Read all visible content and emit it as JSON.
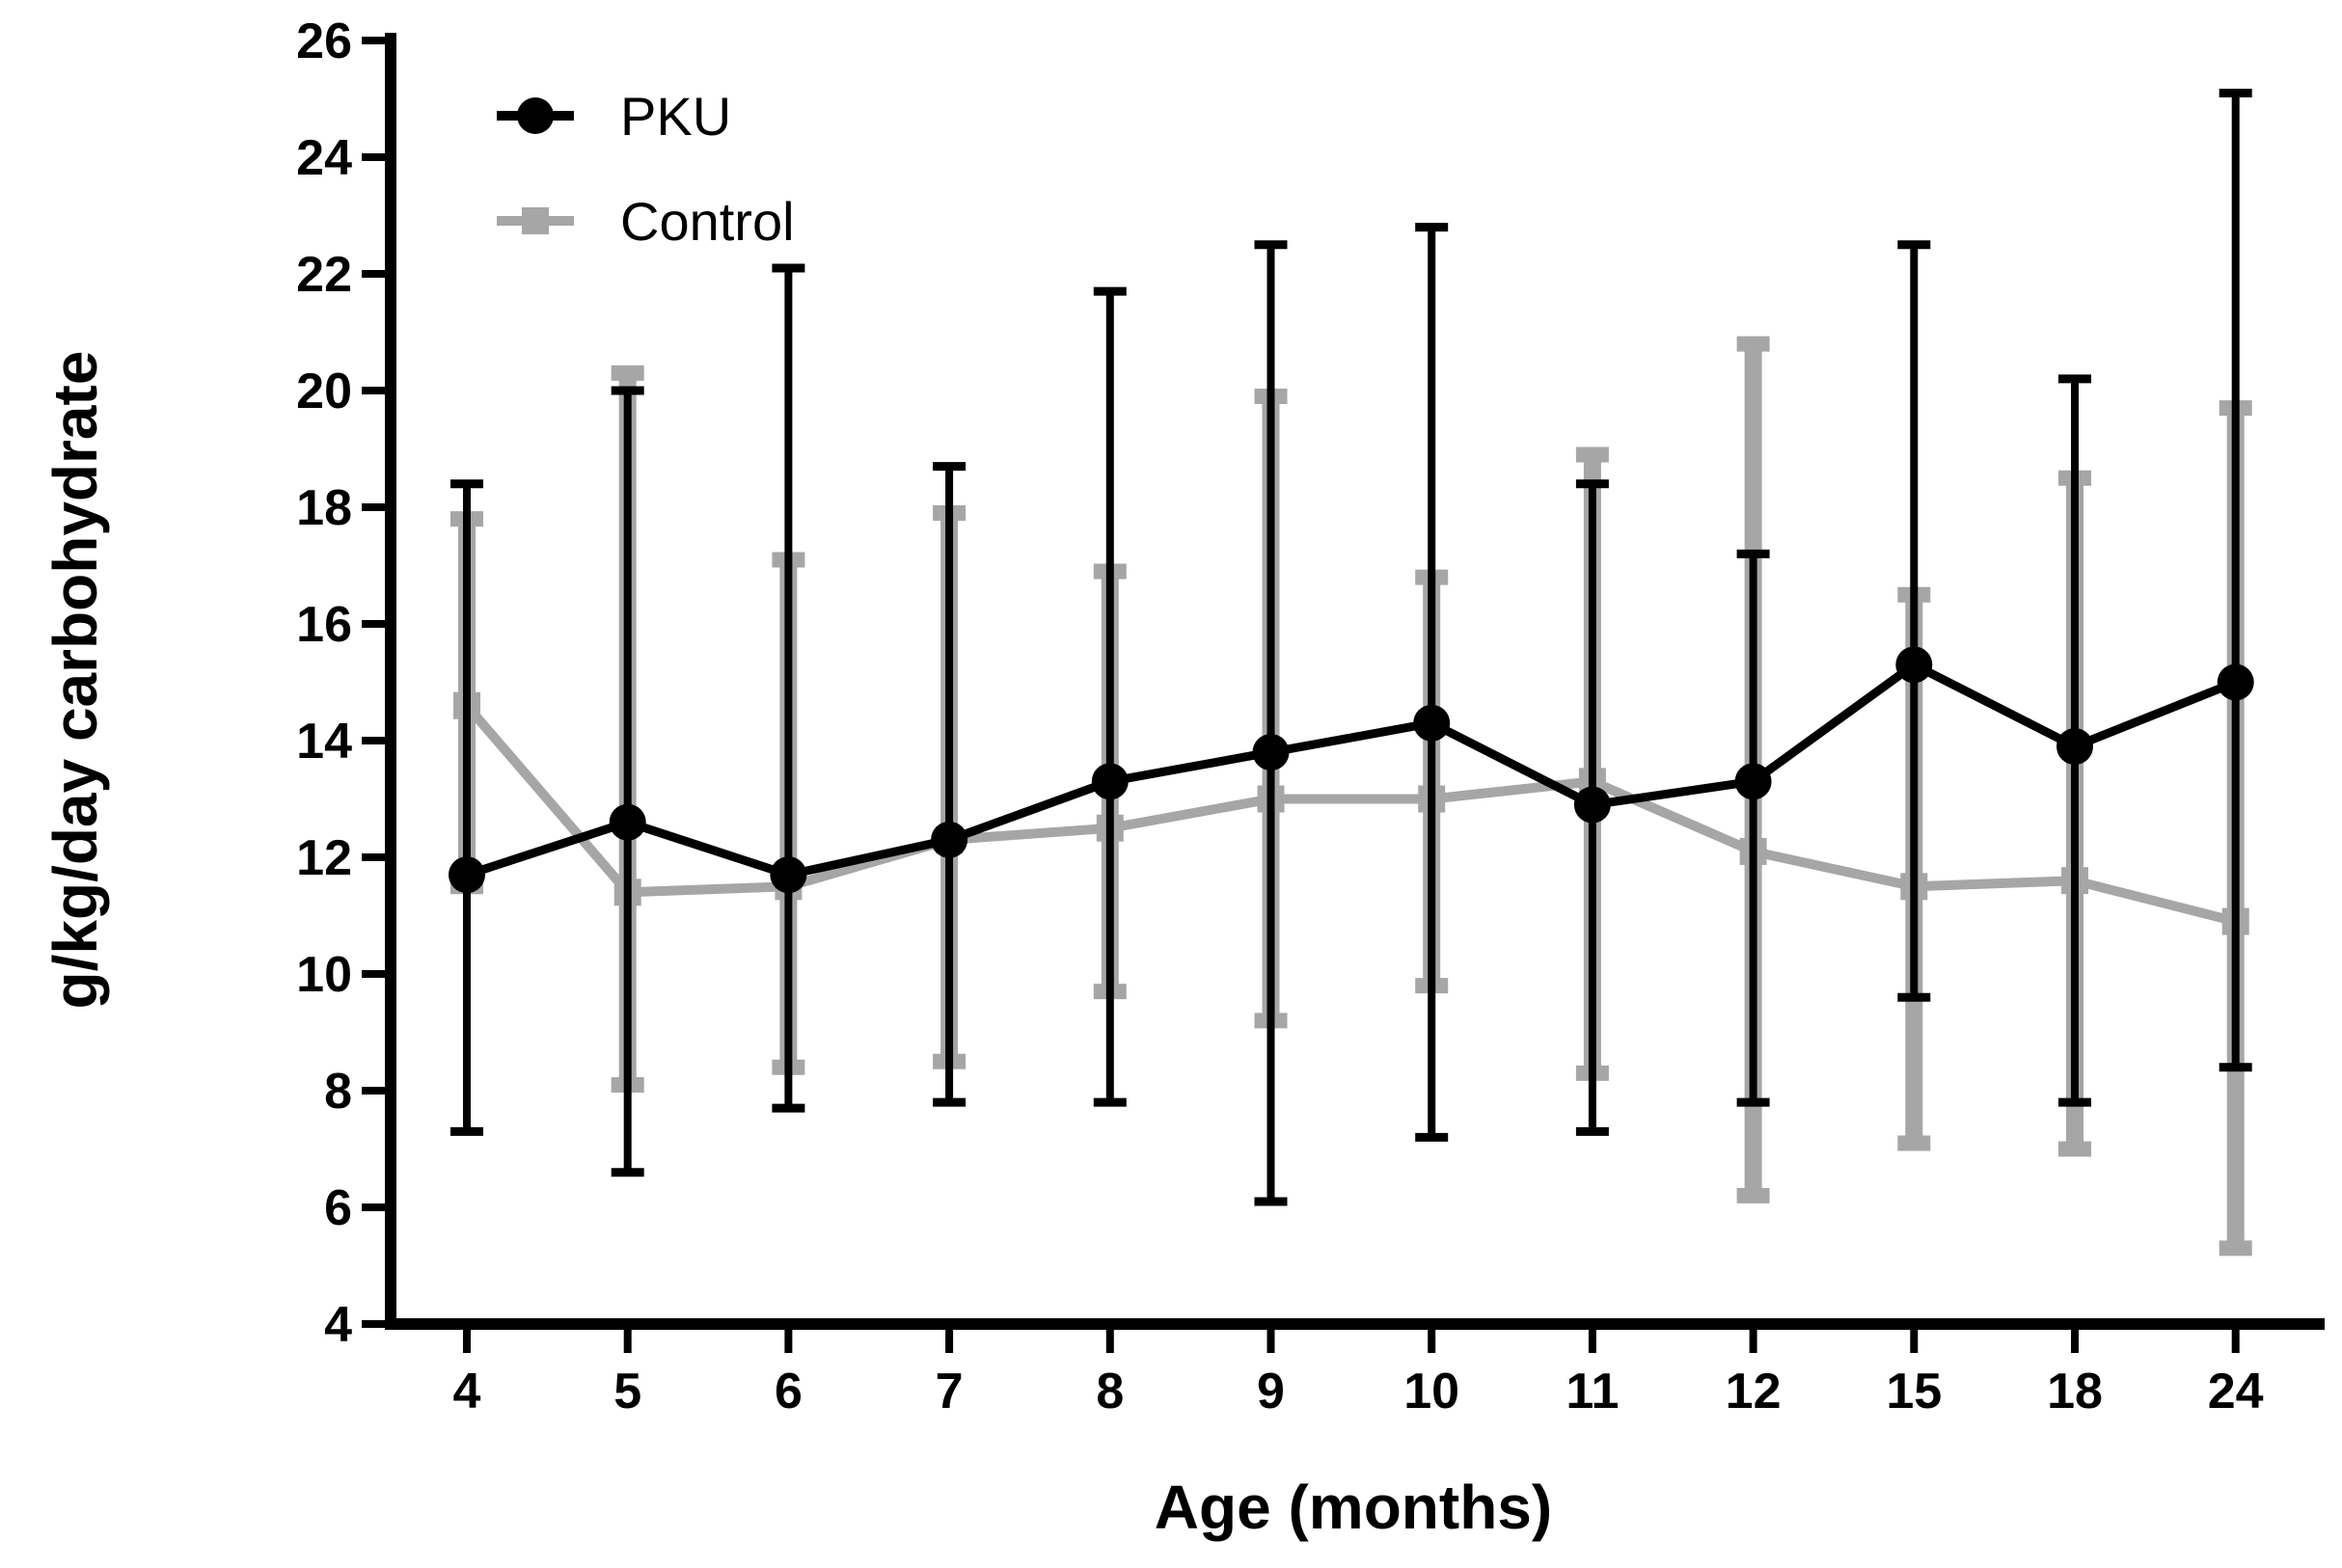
{
  "chart_data": {
    "type": "line",
    "title": "",
    "xlabel": "Age (months)",
    "ylabel": "g/kg/day carbohydrate",
    "categories": [
      "4",
      "5",
      "6",
      "7",
      "8",
      "9",
      "10",
      "11",
      "12",
      "15",
      "18",
      "24"
    ],
    "ylim": [
      4,
      26
    ],
    "yticks": [
      4,
      6,
      8,
      10,
      12,
      14,
      16,
      18,
      20,
      22,
      24,
      26
    ],
    "grid": false,
    "legend_position": "top-left",
    "series": [
      {
        "name": "Control",
        "color": "#a6a6a6",
        "marker": "square",
        "values": [
          14.6,
          11.4,
          11.5,
          12.3,
          12.5,
          13.0,
          13.0,
          13.3,
          12.1,
          11.5,
          11.6,
          10.9
        ],
        "error_low": [
          11.5,
          8.1,
          8.4,
          8.5,
          9.7,
          9.2,
          9.8,
          8.3,
          6.2,
          7.1,
          7.0,
          5.3
        ],
        "error_high": [
          17.8,
          20.3,
          17.1,
          17.9,
          16.9,
          19.9,
          16.8,
          18.9,
          20.8,
          16.5,
          18.5,
          19.7
        ]
      },
      {
        "name": "PKU",
        "color": "#000000",
        "marker": "circle",
        "values": [
          11.7,
          12.6,
          11.7,
          12.3,
          13.3,
          13.8,
          14.3,
          12.9,
          13.3,
          15.3,
          13.9,
          15.0
        ],
        "error_low": [
          7.3,
          6.6,
          7.7,
          7.8,
          7.8,
          6.1,
          7.2,
          7.3,
          7.8,
          9.6,
          7.8,
          8.4
        ],
        "error_high": [
          18.4,
          20.0,
          22.1,
          18.7,
          21.7,
          22.5,
          22.8,
          18.4,
          17.2,
          22.5,
          20.2,
          25.1
        ]
      }
    ]
  }
}
